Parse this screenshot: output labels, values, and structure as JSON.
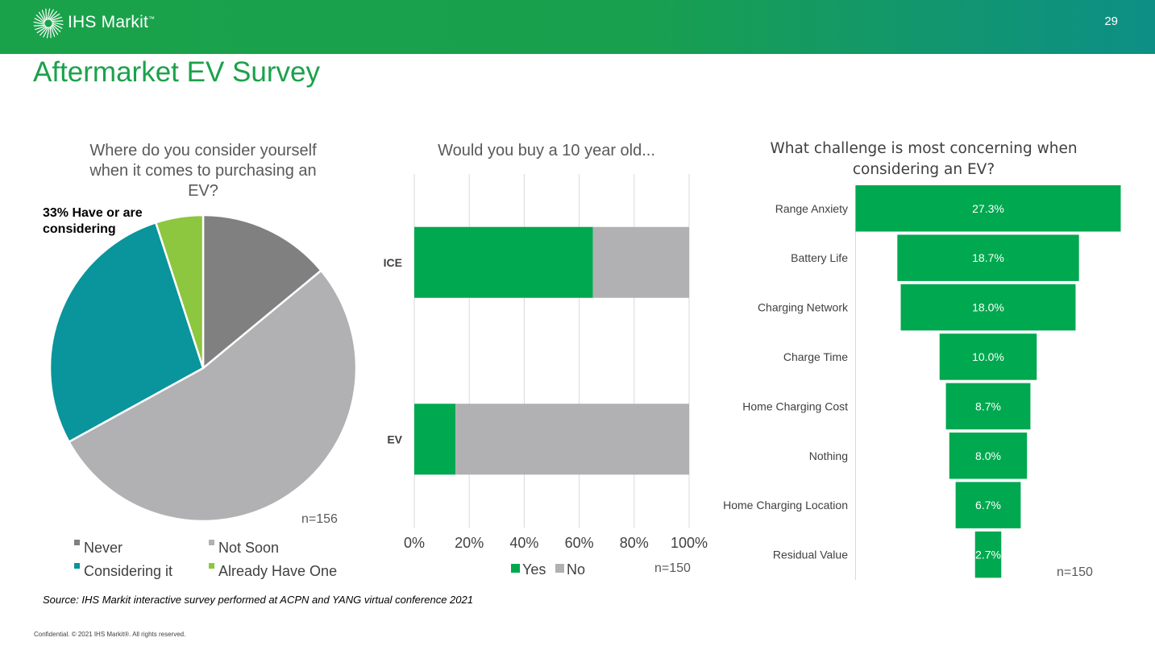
{
  "header": {
    "logo_text": "IHS Markit",
    "trademark": "™",
    "page_number": "29"
  },
  "title": "Aftermarket EV Survey",
  "source": "Source: IHS Markit interactive survey performed at ACPN and YANG virtual conference 2021",
  "footer": "Confidential. © 2021 IHS Markit®. All rights reserved.",
  "chart_data": [
    {
      "type": "pie",
      "title": "Where do you consider yourself when it comes to purchasing an EV?",
      "title_lines": [
        "Where do you consider yourself",
        "when it comes to purchasing an",
        "EV?"
      ],
      "slices": [
        {
          "label": "Never",
          "value": 14,
          "color": "#808080"
        },
        {
          "label": "Not Soon",
          "value": 53,
          "color": "#b1b1b3"
        },
        {
          "label": "Considering it",
          "value": 28,
          "color": "#0a949c"
        },
        {
          "label": "Already Have One",
          "value": 5,
          "color": "#8dc63f"
        }
      ],
      "annotation": "33% Have or are considering",
      "n_label": "n=156",
      "legend_placement": "bottom"
    },
    {
      "type": "bar",
      "orientation": "horizontal",
      "stacked": true,
      "title": "Would you buy a 10 year old...",
      "categories": [
        "ICE",
        "EV"
      ],
      "series": [
        {
          "name": "Yes",
          "values": [
            65,
            15
          ],
          "color": "#00a84f"
        },
        {
          "name": "No",
          "values": [
            35,
            85
          ],
          "color": "#b1b1b3"
        }
      ],
      "xlim": [
        0,
        100
      ],
      "x_ticks": [
        "0%",
        "20%",
        "40%",
        "60%",
        "80%",
        "100%"
      ],
      "grid": true,
      "n_label": "n=150",
      "legend_placement": "bottom"
    },
    {
      "type": "bar",
      "orientation": "funnel",
      "title": "What challenge is most concerning when considering an EV?",
      "title_lines": [
        "What challenge is most concerning when",
        "considering an EV?"
      ],
      "categories": [
        "Range Anxiety",
        "Battery Life",
        "Charging Network",
        "Charge Time",
        "Home Charging Cost",
        "Nothing",
        "Home Charging Location",
        "Residual Value"
      ],
      "values": [
        27.3,
        18.7,
        18.0,
        10.0,
        8.7,
        8.0,
        6.7,
        2.7
      ],
      "value_labels": [
        "27.3%",
        "18.7%",
        "18.0%",
        "10.0%",
        "8.7%",
        "8.0%",
        "6.7%",
        "2.7%"
      ],
      "color": "#00a84f",
      "n_label": "n=150"
    }
  ]
}
